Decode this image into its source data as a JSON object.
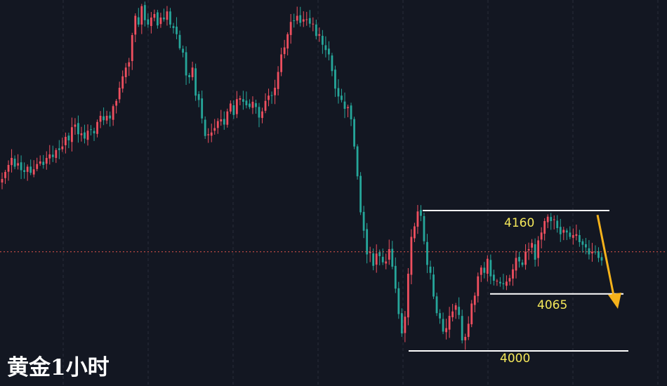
{
  "colors": {
    "background": "#131722",
    "grid": "#2a2e39",
    "candle_up": "#ef4f5f",
    "candle_down": "#26a69a",
    "level_line": "#ffffff",
    "level_label": "#f5e85a",
    "price_line": "#e5564d",
    "arrow": "#f5b21b"
  },
  "chart_data": {
    "type": "candlestick",
    "title": "黄金1小时",
    "ylim": [
      3960,
      4400
    ],
    "grid": "vertical-dashed",
    "current_price": 4113,
    "levels": [
      {
        "label": "4160",
        "value": 4160
      },
      {
        "label": "4065",
        "value": 4065
      },
      {
        "label": "4000",
        "value": 4000
      }
    ],
    "annotation": {
      "type": "arrow",
      "direction": "down",
      "from_value": 4155,
      "to_value": 4048
    },
    "closes": [
      4196,
      4204,
      4212,
      4220,
      4210,
      4214,
      4206,
      4204,
      4210,
      4203,
      4207,
      4213,
      4216,
      4212,
      4220,
      4224,
      4221,
      4229,
      4229,
      4233,
      4244,
      4240,
      4255,
      4258,
      4247,
      4248,
      4242,
      4251,
      4252,
      4248,
      4261,
      4268,
      4263,
      4268,
      4265,
      4279,
      4285,
      4300,
      4313,
      4323,
      4329,
      4360,
      4382,
      4372,
      4393,
      4377,
      4372,
      4380,
      4384,
      4371,
      4380,
      4378,
      4387,
      4372,
      4368,
      4361,
      4345,
      4340,
      4314,
      4312,
      4323,
      4291,
      4286,
      4265,
      4245,
      4247,
      4249,
      4254,
      4262,
      4264,
      4258,
      4273,
      4282,
      4269,
      4287,
      4288,
      4284,
      4280,
      4278,
      4284,
      4278,
      4266,
      4273,
      4285,
      4291,
      4291,
      4300,
      4318,
      4338,
      4346,
      4361,
      4375,
      4376,
      4382,
      4374,
      4378,
      4378,
      4373,
      4373,
      4359,
      4361,
      4349,
      4343,
      4338,
      4319,
      4299,
      4290,
      4286,
      4276,
      4278,
      4264,
      4233,
      4199,
      4158,
      4137,
      4110,
      4113,
      4097,
      4111,
      4108,
      4101,
      4102,
      4116,
      4096,
      4071,
      4042,
      4020,
      4039,
      4088,
      4130,
      4142,
      4159,
      4154,
      4125,
      4098,
      4089,
      4062,
      4043,
      4037,
      4022,
      4026,
      4040,
      4045,
      4052,
      4041,
      4012,
      4016,
      4031,
      4054,
      4063,
      4085,
      4095,
      4089,
      4105,
      4085,
      4080,
      4080,
      4077,
      4076,
      4079,
      4083,
      4093,
      4106,
      4102,
      4098,
      4113,
      4116,
      4123,
      4104,
      4126,
      4135,
      4148,
      4153,
      4148,
      4150,
      4140,
      4133,
      4138,
      4135,
      4130,
      4132,
      4133,
      4124,
      4121,
      4118,
      4110,
      4113,
      4113,
      4106,
      4103
    ]
  }
}
